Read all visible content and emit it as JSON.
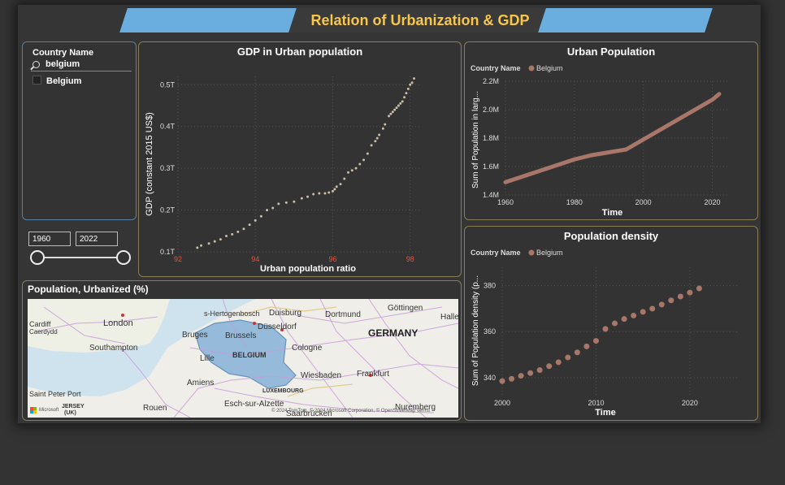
{
  "report": {
    "title": "Relation of Urbanization & GDP",
    "colors": {
      "banner": "#6aaee0",
      "title": "#f7c64a",
      "series": "#a9776a",
      "scatter": "#c8bda5",
      "tick_accent": "#e2553f"
    }
  },
  "slicer": {
    "title": "Country Name",
    "search_value": "belgium",
    "items": [
      {
        "label": "Belgium",
        "checked": false
      }
    ]
  },
  "year_range": {
    "start": "1960",
    "end": "2022"
  },
  "gdp_chart": {
    "title": "GDP in Urban population",
    "chart_data": {
      "type": "scatter",
      "title": "GDP in Urban population",
      "xlabel": "Urban population ratio",
      "ylabel": "GDP (constant 2015 US$)",
      "x_ticks": [
        "92",
        "94",
        "96",
        "98"
      ],
      "y_ticks": [
        "0.1T",
        "0.2T",
        "0.3T",
        "0.4T",
        "0.5T"
      ],
      "xlim": [
        92,
        98.3
      ],
      "ylim": [
        0.1,
        0.52
      ],
      "grid": true,
      "x": [
        92.5,
        92.6,
        92.8,
        92.95,
        93.1,
        93.25,
        93.4,
        93.55,
        93.7,
        93.85,
        94.0,
        94.15,
        94.3,
        94.45,
        94.6,
        94.8,
        95.0,
        95.2,
        95.35,
        95.5,
        95.65,
        95.8,
        95.9,
        96.0,
        96.05,
        96.1,
        96.2,
        96.3,
        96.4,
        96.5,
        96.6,
        96.7,
        96.8,
        96.9,
        97.0,
        97.1,
        97.15,
        97.2,
        97.3,
        97.35,
        97.45,
        97.5,
        97.55,
        97.6,
        97.65,
        97.7,
        97.75,
        97.8,
        97.85,
        97.9,
        97.95,
        98.0,
        98.05,
        98.1
      ],
      "y": [
        0.11,
        0.115,
        0.12,
        0.125,
        0.13,
        0.138,
        0.142,
        0.148,
        0.155,
        0.165,
        0.175,
        0.185,
        0.2,
        0.205,
        0.215,
        0.218,
        0.22,
        0.228,
        0.232,
        0.238,
        0.24,
        0.24,
        0.242,
        0.245,
        0.25,
        0.256,
        0.262,
        0.275,
        0.29,
        0.295,
        0.3,
        0.31,
        0.32,
        0.335,
        0.355,
        0.365,
        0.372,
        0.38,
        0.395,
        0.405,
        0.425,
        0.43,
        0.435,
        0.44,
        0.445,
        0.45,
        0.455,
        0.46,
        0.47,
        0.48,
        0.49,
        0.5,
        0.505,
        0.515
      ]
    }
  },
  "urban_chart": {
    "title": "Urban Population",
    "legend_title": "Country Name",
    "legend_item": "Belgium",
    "chart_data": {
      "type": "line",
      "title": "Urban Population",
      "xlabel": "Time",
      "ylabel": "Sum of Population in larg...",
      "x_ticks": [
        "1960",
        "1980",
        "2000",
        "2020"
      ],
      "y_ticks": [
        "1.4M",
        "1.6M",
        "1.8M",
        "2.0M",
        "2.2M"
      ],
      "xlim": [
        1960,
        2022
      ],
      "ylim": [
        1.4,
        2.2
      ],
      "series": [
        {
          "name": "Belgium",
          "x": [
            1960,
            1965,
            1970,
            1975,
            1980,
            1985,
            1990,
            1995,
            2000,
            2005,
            2010,
            2015,
            2020,
            2022
          ],
          "values": [
            1.49,
            1.53,
            1.57,
            1.61,
            1.65,
            1.68,
            1.7,
            1.72,
            1.79,
            1.86,
            1.93,
            2.0,
            2.07,
            2.11
          ]
        }
      ]
    }
  },
  "density_chart": {
    "title": "Population density",
    "legend_title": "Country Name",
    "legend_item": "Belgium",
    "chart_data": {
      "type": "scatter",
      "title": "Population density",
      "xlabel": "Time",
      "ylabel": "Sum of Population density (p...",
      "x_ticks": [
        "2000",
        "2010",
        "2020"
      ],
      "y_ticks": [
        "340",
        "360",
        "380"
      ],
      "xlim": [
        2000,
        2022
      ],
      "ylim": [
        335,
        388
      ],
      "series": [
        {
          "name": "Belgium",
          "x": [
            2000,
            2001,
            2002,
            2003,
            2004,
            2005,
            2006,
            2007,
            2008,
            2009,
            2010,
            2011,
            2012,
            2013,
            2014,
            2015,
            2016,
            2017,
            2018,
            2019,
            2020,
            2021
          ],
          "values": [
            338.5,
            339.5,
            340.8,
            342.0,
            343.3,
            345.0,
            346.7,
            348.8,
            351.0,
            353.6,
            356.0,
            361.2,
            363.6,
            365.5,
            367.0,
            368.6,
            370.0,
            371.8,
            373.6,
            375.3,
            377.0,
            378.8
          ]
        }
      ]
    }
  },
  "map_card": {
    "title": "Population, Urbanized (%)",
    "labels": {
      "london": "London",
      "cardiff": "Cardiff",
      "caerdydd": "Caerdydd",
      "southampton": "Southampton",
      "saint_peter_port": "Saint Peter Port",
      "jersey": "JERSEY",
      "uk": "(UK)",
      "rouen": "Rouen",
      "amiens": "Amiens",
      "lille": "Lille",
      "bruges": "Bruges",
      "brussels": "Brussels",
      "belgium": "BELGIUM",
      "s_hertogenbosch": "s-Hertogenbosch",
      "duisburg": "Duisburg",
      "dusseldorf": "Düsseldorf",
      "dortmund": "Dortmund",
      "gottingen": "Göttingen",
      "halle": "Halle",
      "cologne": "Cologne",
      "germany": "GERMANY",
      "wiesbaden": "Wiesbaden",
      "frankfurt": "Frankfurt",
      "luxembourg": "LUXEMBOURG",
      "esch_sur_alzette": "Esch-sur-Alzette",
      "saarbrucken": "Saarbrücken",
      "nuremberg": "Nuremberg",
      "microsoft": "Microsoft",
      "copyright": "© 2024 TomTom, © 2024 Microsoft Corporation, © OpenStreetMap Terms"
    }
  }
}
